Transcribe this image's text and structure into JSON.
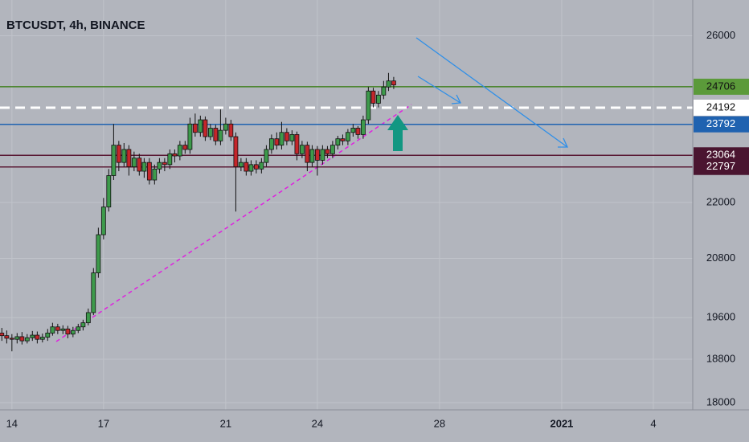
{
  "chart_data": {
    "type": "candlestick",
    "title": "BTCUSDT, 4h, BINANCE",
    "log_scale": true,
    "grid": true,
    "xlim": [
      -0.39,
      22.29
    ],
    "xticks": [
      {
        "value": 0,
        "label": "14"
      },
      {
        "value": 3,
        "label": "17"
      },
      {
        "value": 7,
        "label": "21"
      },
      {
        "value": 10,
        "label": "24"
      },
      {
        "value": 14,
        "label": "28"
      },
      {
        "value": 18,
        "label": "2021"
      },
      {
        "value": 21,
        "label": "4"
      }
    ],
    "ylim": [
      17870,
      26950
    ],
    "yticks": [
      18000,
      18800,
      19600,
      20800,
      22000,
      26000
    ],
    "up_color": "#3d9a4b",
    "down_color": "#c4262b",
    "x": [
      -0.33,
      -0.17,
      0,
      0.17,
      0.33,
      0.5,
      0.67,
      0.83,
      1,
      1.17,
      1.33,
      1.5,
      1.67,
      1.83,
      2,
      2.17,
      2.33,
      2.5,
      2.67,
      2.83,
      3,
      3.17,
      3.33,
      3.5,
      3.67,
      3.83,
      4,
      4.17,
      4.33,
      4.5,
      4.67,
      4.83,
      5,
      5.17,
      5.33,
      5.5,
      5.67,
      5.83,
      6,
      6.17,
      6.33,
      6.5,
      6.67,
      6.83,
      7,
      7.17,
      7.33,
      7.5,
      7.67,
      7.83,
      8,
      8.17,
      8.33,
      8.5,
      8.67,
      8.83,
      9,
      9.17,
      9.33,
      9.5,
      9.67,
      9.83,
      10,
      10.17,
      10.33,
      10.5,
      10.67,
      10.83,
      11,
      11.17,
      11.33,
      11.5,
      11.67,
      11.83,
      12,
      12.17,
      12.33,
      12.5
    ],
    "open": [
      19300,
      19250,
      19200,
      19180,
      19230,
      19150,
      19210,
      19260,
      19180,
      19220,
      19300,
      19420,
      19350,
      19380,
      19280,
      19350,
      19420,
      19500,
      19700,
      20500,
      21300,
      21900,
      22600,
      23300,
      22900,
      23200,
      22800,
      23000,
      22700,
      22900,
      22500,
      22750,
      22900,
      22850,
      23100,
      23050,
      23300,
      23200,
      23800,
      23600,
      23900,
      23500,
      23700,
      23400,
      23650,
      23800,
      23500,
      22800,
      22900,
      22700,
      22850,
      22750,
      22900,
      23200,
      23450,
      23300,
      23600,
      23400,
      23550,
      23100,
      23300,
      22900,
      23200,
      22950,
      23200,
      23100,
      23300,
      23450,
      23400,
      23600,
      23700,
      23550,
      23900,
      24600,
      24300,
      24500,
      24700,
      24850
    ],
    "high": [
      19400,
      19350,
      19280,
      19300,
      19320,
      19280,
      19340,
      19330,
      19290,
      19380,
      19500,
      19480,
      19450,
      19440,
      19420,
      19480,
      19560,
      19780,
      20600,
      21450,
      22100,
      22750,
      23800,
      23400,
      23350,
      23300,
      23150,
      23100,
      23000,
      23000,
      22850,
      23000,
      23000,
      23200,
      23200,
      23400,
      23400,
      23950,
      24050,
      24000,
      23980,
      23800,
      23780,
      24150,
      23950,
      23900,
      23600,
      23000,
      23000,
      22950,
      22950,
      23000,
      23300,
      23550,
      23600,
      23850,
      23700,
      23650,
      23620,
      23400,
      23380,
      23300,
      23280,
      23300,
      23280,
      23400,
      23520,
      23550,
      23680,
      23800,
      23750,
      24000,
      24700,
      24680,
      24600,
      24850,
      25050,
      24950
    ],
    "low": [
      19150,
      19100,
      18950,
      19100,
      19080,
      19100,
      19150,
      19100,
      19120,
      19150,
      19250,
      19280,
      19280,
      19200,
      19220,
      19300,
      19350,
      19450,
      19650,
      20400,
      21200,
      21800,
      22500,
      22700,
      22800,
      22600,
      22700,
      22600,
      22550,
      22400,
      22400,
      22650,
      22700,
      22750,
      22900,
      22950,
      23100,
      23100,
      23500,
      23500,
      23400,
      23420,
      23300,
      23300,
      23550,
      23400,
      21800,
      22700,
      22600,
      22600,
      22650,
      22650,
      22800,
      23100,
      23200,
      23200,
      23300,
      23300,
      22950,
      23000,
      22700,
      22800,
      22600,
      22850,
      23000,
      23000,
      23200,
      23300,
      23300,
      23500,
      23450,
      23450,
      23800,
      24200,
      24200,
      24400,
      24600,
      24650
    ],
    "close": [
      19250,
      19200,
      19180,
      19230,
      19150,
      19210,
      19260,
      19180,
      19220,
      19300,
      19420,
      19350,
      19380,
      19280,
      19350,
      19420,
      19500,
      19700,
      20500,
      21300,
      21900,
      22600,
      23300,
      22900,
      23200,
      22800,
      23000,
      22700,
      22900,
      22500,
      22750,
      22900,
      22850,
      23100,
      23050,
      23300,
      23200,
      23800,
      23600,
      23900,
      23500,
      23700,
      23400,
      23650,
      23800,
      23500,
      22800,
      22900,
      22700,
      22850,
      22750,
      22900,
      23200,
      23450,
      23300,
      23600,
      23400,
      23550,
      23100,
      23300,
      22900,
      23200,
      22950,
      23200,
      23100,
      23300,
      23450,
      23400,
      23600,
      23700,
      23550,
      23900,
      24600,
      24300,
      24500,
      24700,
      24850,
      24750
    ],
    "levels": [
      {
        "value": 24706,
        "color": "#3f7f1f",
        "label_color": "#5b9a3a",
        "text_color": "#111111",
        "dashed": false
      },
      {
        "value": 24192,
        "color": "#ffffff",
        "label_color": "#ffffff",
        "text_color": "#111111",
        "dashed": true
      },
      {
        "value": 23792,
        "color": "#1f62b0",
        "label_color": "#1f62b0",
        "text_color": "#ffffff",
        "dashed": false
      },
      {
        "value": 23064,
        "color": "#5a1a35",
        "label_color": "#4a1530",
        "text_color": "#ffffff",
        "dashed": false
      },
      {
        "value": 22797,
        "color": "#5a1a35",
        "label_color": "#4a1530",
        "text_color": "#ffffff",
        "dashed": false
      }
    ]
  }
}
